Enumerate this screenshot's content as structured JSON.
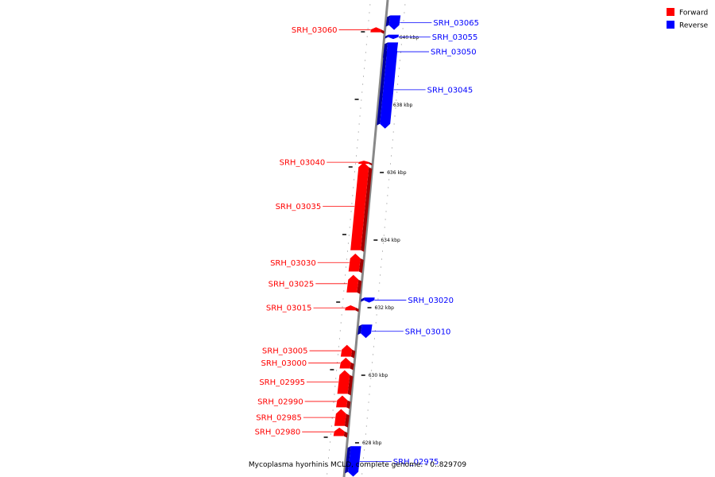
{
  "legend": {
    "forward_label": "Forward",
    "reverse_label": "Reverse",
    "forward_color": "#ff0000",
    "reverse_color": "#0000ff"
  },
  "caption": "Mycoplasma hyorhinis MCLD, complete genome. - 0..829709",
  "axis_color": "#888888",
  "ticks": [
    {
      "label": "640 kbp",
      "kbp": 640
    },
    {
      "label": "638 kbp",
      "kbp": 638
    },
    {
      "label": "636 kbp",
      "kbp": 636
    },
    {
      "label": "634 kbp",
      "kbp": 634
    },
    {
      "label": "632 kbp",
      "kbp": 632
    },
    {
      "label": "630 kbp",
      "kbp": 630
    },
    {
      "label": "628 kbp",
      "kbp": 628
    }
  ],
  "genes": [
    {
      "name": "SRH_03065",
      "strand": "reverse",
      "start_kbp": 640.22,
      "end_kbp": 640.65
    },
    {
      "name": "SRH_03060",
      "strand": "forward",
      "start_kbp": 640.15,
      "end_kbp": 640.3
    },
    {
      "name": "SRH_03055",
      "strand": "reverse",
      "start_kbp": 639.95,
      "end_kbp": 640.08
    },
    {
      "name": "SRH_03050",
      "strand": "reverse",
      "start_kbp": 639.3,
      "end_kbp": 639.85
    },
    {
      "name": "SRH_03045",
      "strand": "reverse",
      "start_kbp": 637.3,
      "end_kbp": 639.6
    },
    {
      "name": "SRH_03040",
      "strand": "forward",
      "start_kbp": 636.3,
      "end_kbp": 636.35
    },
    {
      "name": "SRH_03035",
      "strand": "forward",
      "start_kbp": 633.7,
      "end_kbp": 636.3
    },
    {
      "name": "SRH_03030",
      "strand": "forward",
      "start_kbp": 633.07,
      "end_kbp": 633.6
    },
    {
      "name": "SRH_03025",
      "strand": "forward",
      "start_kbp": 632.45,
      "end_kbp": 632.97
    },
    {
      "name": "SRH_03020",
      "strand": "reverse",
      "start_kbp": 632.15,
      "end_kbp": 632.3
    },
    {
      "name": "SRH_03015",
      "strand": "forward",
      "start_kbp": 631.92,
      "end_kbp": 632.07
    },
    {
      "name": "SRH_03010",
      "strand": "reverse",
      "start_kbp": 631.1,
      "end_kbp": 631.5
    },
    {
      "name": "SRH_03005",
      "strand": "forward",
      "start_kbp": 630.55,
      "end_kbp": 630.9
    },
    {
      "name": "SRH_03000",
      "strand": "forward",
      "start_kbp": 630.2,
      "end_kbp": 630.52
    },
    {
      "name": "SRH_02995",
      "strand": "forward",
      "start_kbp": 629.45,
      "end_kbp": 630.15
    },
    {
      "name": "SRH_02990",
      "strand": "forward",
      "start_kbp": 629.05,
      "end_kbp": 629.4
    },
    {
      "name": "SRH_02985",
      "strand": "forward",
      "start_kbp": 628.5,
      "end_kbp": 629.0
    },
    {
      "name": "SRH_02980",
      "strand": "forward",
      "start_kbp": 628.2,
      "end_kbp": 628.45
    },
    {
      "name": "SRH_02975",
      "strand": "reverse",
      "start_kbp": 627.0,
      "end_kbp": 627.9
    }
  ]
}
